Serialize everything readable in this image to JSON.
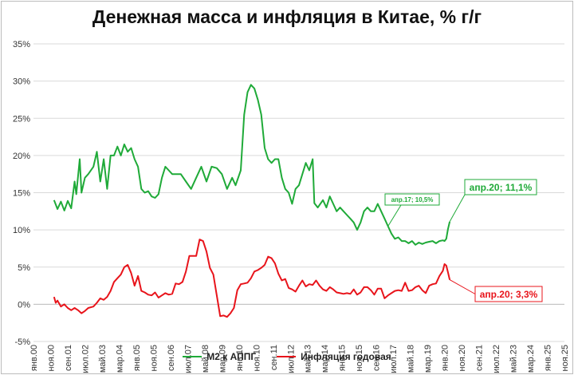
{
  "title": "Денежная масса и инфляция в Китае, % г/г",
  "legend": {
    "m2": "М2 к АППГ",
    "cpi": "Инфляция годовая"
  },
  "colors": {
    "m2": "#1faa38",
    "cpi": "#e8141b",
    "grid": "#d9d9d9"
  },
  "chart_data": {
    "type": "line",
    "title": "Денежная масса и инфляция в Китае, % г/г",
    "ylim": [
      -5,
      35
    ],
    "yticks": [
      -5,
      0,
      5,
      10,
      15,
      20,
      25,
      30,
      35
    ],
    "ytick_labels": [
      "-5%",
      "0%",
      "5%",
      "10%",
      "15%",
      "20%",
      "25%",
      "30%",
      "35%"
    ],
    "x_domain": [
      "2000-01",
      "2025-11"
    ],
    "xticks": [
      {
        "date": "2000-01",
        "label": "янв.00"
      },
      {
        "date": "2000-11",
        "label": "ноя.00"
      },
      {
        "date": "2001-09",
        "label": "сен.01"
      },
      {
        "date": "2002-07",
        "label": "июл.02"
      },
      {
        "date": "2003-05",
        "label": "май.03"
      },
      {
        "date": "2004-03",
        "label": "мар.04"
      },
      {
        "date": "2005-01",
        "label": "янв.05"
      },
      {
        "date": "2005-11",
        "label": "ноя.05"
      },
      {
        "date": "2006-09",
        "label": "сен.06"
      },
      {
        "date": "2007-07",
        "label": "июл.07"
      },
      {
        "date": "2008-05",
        "label": "май.08"
      },
      {
        "date": "2009-03",
        "label": "мар.09"
      },
      {
        "date": "2010-01",
        "label": "янв.10"
      },
      {
        "date": "2010-11",
        "label": "ноя.10"
      },
      {
        "date": "2011-09",
        "label": "сен.11"
      },
      {
        "date": "2012-07",
        "label": "июл.12"
      },
      {
        "date": "2013-05",
        "label": "май.13"
      },
      {
        "date": "2014-03",
        "label": "мар.14"
      },
      {
        "date": "2015-01",
        "label": "янв.15"
      },
      {
        "date": "2015-11",
        "label": "ноя.15"
      },
      {
        "date": "2016-09",
        "label": "сен.16"
      },
      {
        "date": "2017-07",
        "label": "июл.17"
      },
      {
        "date": "2018-05",
        "label": "май.18"
      },
      {
        "date": "2019-03",
        "label": "мар.19"
      },
      {
        "date": "2020-01",
        "label": "янв.20"
      },
      {
        "date": "2020-11",
        "label": "ноя.20"
      },
      {
        "date": "2021-09",
        "label": "сен.21"
      },
      {
        "date": "2022-07",
        "label": "июл.22"
      },
      {
        "date": "2023-05",
        "label": "май.23"
      },
      {
        "date": "2024-03",
        "label": "мар.24"
      },
      {
        "date": "2025-01",
        "label": "янв.25"
      },
      {
        "date": "2025-11",
        "label": "ноя.25"
      }
    ],
    "grid": true,
    "legend_position": "bottom",
    "series": [
      {
        "name": "М2 к АППГ",
        "color": "#1faa38",
        "points": [
          [
            "2001-01",
            14.0
          ],
          [
            "2001-03",
            12.8
          ],
          [
            "2001-05",
            13.8
          ],
          [
            "2001-07",
            12.6
          ],
          [
            "2001-09",
            13.9
          ],
          [
            "2001-11",
            12.9
          ],
          [
            "2002-01",
            16.5
          ],
          [
            "2002-02",
            14.8
          ],
          [
            "2002-04",
            19.5
          ],
          [
            "2002-05",
            15.0
          ],
          [
            "2002-07",
            17.0
          ],
          [
            "2002-09",
            17.5
          ],
          [
            "2002-12",
            18.5
          ],
          [
            "2003-02",
            20.5
          ],
          [
            "2003-04",
            16.5
          ],
          [
            "2003-06",
            19.5
          ],
          [
            "2003-08",
            15.5
          ],
          [
            "2003-10",
            20.0
          ],
          [
            "2003-12",
            20.0
          ],
          [
            "2004-02",
            21.2
          ],
          [
            "2004-04",
            20.0
          ],
          [
            "2004-06",
            21.5
          ],
          [
            "2004-08",
            20.5
          ],
          [
            "2004-10",
            21.0
          ],
          [
            "2004-12",
            19.5
          ],
          [
            "2005-02",
            18.5
          ],
          [
            "2005-04",
            15.5
          ],
          [
            "2005-06",
            15.0
          ],
          [
            "2005-08",
            15.2
          ],
          [
            "2005-10",
            14.5
          ],
          [
            "2005-12",
            14.3
          ],
          [
            "2006-02",
            14.8
          ],
          [
            "2006-04",
            17.0
          ],
          [
            "2006-06",
            18.5
          ],
          [
            "2006-08",
            18.0
          ],
          [
            "2006-10",
            17.5
          ],
          [
            "2006-12",
            17.5
          ],
          [
            "2007-03",
            17.5
          ],
          [
            "2007-06",
            16.5
          ],
          [
            "2007-09",
            15.5
          ],
          [
            "2007-12",
            17.0
          ],
          [
            "2008-03",
            18.5
          ],
          [
            "2008-06",
            16.5
          ],
          [
            "2008-09",
            18.5
          ],
          [
            "2008-12",
            18.3
          ],
          [
            "2009-03",
            17.5
          ],
          [
            "2009-06",
            15.5
          ],
          [
            "2009-09",
            17.0
          ],
          [
            "2009-11",
            16.0
          ],
          [
            "2010-02",
            18.0
          ],
          [
            "2010-04",
            25.5
          ],
          [
            "2010-06",
            28.5
          ],
          [
            "2010-08",
            29.5
          ],
          [
            "2010-10",
            29.0
          ],
          [
            "2010-12",
            27.5
          ],
          [
            "2011-02",
            25.5
          ],
          [
            "2011-04",
            21.0
          ],
          [
            "2011-06",
            19.5
          ],
          [
            "2011-08",
            19.0
          ],
          [
            "2011-10",
            19.5
          ],
          [
            "2011-12",
            19.5
          ],
          [
            "2012-02",
            17.0
          ],
          [
            "2012-04",
            15.5
          ],
          [
            "2012-06",
            15.0
          ],
          [
            "2012-08",
            13.5
          ],
          [
            "2012-10",
            15.5
          ],
          [
            "2012-12",
            16.0
          ],
          [
            "2013-02",
            17.5
          ],
          [
            "2013-04",
            19.0
          ],
          [
            "2013-06",
            18.0
          ],
          [
            "2013-08",
            19.5
          ],
          [
            "2013-09",
            13.6
          ],
          [
            "2013-11",
            13.0
          ],
          [
            "2014-02",
            14.0
          ],
          [
            "2014-04",
            13.0
          ],
          [
            "2014-06",
            14.5
          ],
          [
            "2014-08",
            13.5
          ],
          [
            "2014-10",
            12.5
          ],
          [
            "2014-12",
            13.0
          ],
          [
            "2015-02",
            12.5
          ],
          [
            "2015-04",
            12.0
          ],
          [
            "2015-06",
            11.5
          ],
          [
            "2015-08",
            11.0
          ],
          [
            "2015-10",
            10.0
          ],
          [
            "2015-12",
            11.0
          ],
          [
            "2016-02",
            12.5
          ],
          [
            "2016-04",
            13.0
          ],
          [
            "2016-06",
            12.5
          ],
          [
            "2016-08",
            12.5
          ],
          [
            "2016-10",
            13.5
          ],
          [
            "2016-12",
            12.5
          ],
          [
            "2017-02",
            11.5
          ],
          [
            "2017-04",
            10.5
          ],
          [
            "2017-06",
            9.5
          ],
          [
            "2017-08",
            8.8
          ],
          [
            "2017-10",
            9.0
          ],
          [
            "2017-12",
            8.5
          ],
          [
            "2018-02",
            8.5
          ],
          [
            "2018-04",
            8.2
          ],
          [
            "2018-06",
            8.5
          ],
          [
            "2018-08",
            8.0
          ],
          [
            "2018-10",
            8.3
          ],
          [
            "2018-12",
            8.1
          ],
          [
            "2019-02",
            8.3
          ],
          [
            "2019-04",
            8.4
          ],
          [
            "2019-06",
            8.5
          ],
          [
            "2019-08",
            8.2
          ],
          [
            "2019-10",
            8.5
          ],
          [
            "2019-12",
            8.6
          ],
          [
            "2020-01",
            8.5
          ],
          [
            "2020-02",
            8.8
          ],
          [
            "2020-03",
            10.1
          ],
          [
            "2020-04",
            11.1
          ]
        ]
      },
      {
        "name": "Инфляция годовая",
        "color": "#e8141b",
        "points": [
          [
            "2001-01",
            1.0
          ],
          [
            "2001-02",
            0.2
          ],
          [
            "2001-03",
            0.5
          ],
          [
            "2001-05",
            -0.3
          ],
          [
            "2001-07",
            0.0
          ],
          [
            "2001-09",
            -0.5
          ],
          [
            "2001-11",
            -0.8
          ],
          [
            "2002-01",
            -0.5
          ],
          [
            "2002-03",
            -0.8
          ],
          [
            "2002-05",
            -1.2
          ],
          [
            "2002-07",
            -0.9
          ],
          [
            "2002-09",
            -0.5
          ],
          [
            "2002-12",
            -0.3
          ],
          [
            "2003-02",
            0.2
          ],
          [
            "2003-04",
            0.8
          ],
          [
            "2003-06",
            0.6
          ],
          [
            "2003-08",
            1.0
          ],
          [
            "2003-10",
            1.8
          ],
          [
            "2003-12",
            3.0
          ],
          [
            "2004-02",
            3.5
          ],
          [
            "2004-04",
            4.0
          ],
          [
            "2004-06",
            5.0
          ],
          [
            "2004-08",
            5.3
          ],
          [
            "2004-10",
            4.2
          ],
          [
            "2004-12",
            2.5
          ],
          [
            "2005-02",
            3.8
          ],
          [
            "2005-04",
            1.8
          ],
          [
            "2005-06",
            1.6
          ],
          [
            "2005-08",
            1.3
          ],
          [
            "2005-10",
            1.2
          ],
          [
            "2005-12",
            1.6
          ],
          [
            "2006-02",
            0.9
          ],
          [
            "2006-04",
            1.2
          ],
          [
            "2006-06",
            1.5
          ],
          [
            "2006-08",
            1.3
          ],
          [
            "2006-10",
            1.4
          ],
          [
            "2006-12",
            2.8
          ],
          [
            "2007-02",
            2.7
          ],
          [
            "2007-04",
            3.0
          ],
          [
            "2007-06",
            4.4
          ],
          [
            "2007-08",
            6.5
          ],
          [
            "2007-10",
            6.5
          ],
          [
            "2007-12",
            6.5
          ],
          [
            "2008-02",
            8.7
          ],
          [
            "2008-04",
            8.5
          ],
          [
            "2008-06",
            7.1
          ],
          [
            "2008-08",
            4.9
          ],
          [
            "2008-10",
            4.0
          ],
          [
            "2008-12",
            1.2
          ],
          [
            "2009-02",
            -1.6
          ],
          [
            "2009-04",
            -1.5
          ],
          [
            "2009-06",
            -1.7
          ],
          [
            "2009-08",
            -1.2
          ],
          [
            "2009-10",
            -0.5
          ],
          [
            "2009-12",
            1.9
          ],
          [
            "2010-02",
            2.7
          ],
          [
            "2010-04",
            2.8
          ],
          [
            "2010-06",
            2.9
          ],
          [
            "2010-08",
            3.5
          ],
          [
            "2010-10",
            4.4
          ],
          [
            "2010-12",
            4.6
          ],
          [
            "2011-02",
            4.9
          ],
          [
            "2011-04",
            5.3
          ],
          [
            "2011-06",
            6.4
          ],
          [
            "2011-08",
            6.2
          ],
          [
            "2011-10",
            5.5
          ],
          [
            "2011-12",
            4.1
          ],
          [
            "2012-02",
            3.2
          ],
          [
            "2012-04",
            3.4
          ],
          [
            "2012-06",
            2.2
          ],
          [
            "2012-08",
            2.0
          ],
          [
            "2012-10",
            1.7
          ],
          [
            "2012-12",
            2.5
          ],
          [
            "2013-02",
            3.2
          ],
          [
            "2013-04",
            2.4
          ],
          [
            "2013-06",
            2.7
          ],
          [
            "2013-08",
            2.6
          ],
          [
            "2013-10",
            3.2
          ],
          [
            "2013-12",
            2.5
          ],
          [
            "2014-02",
            2.0
          ],
          [
            "2014-04",
            1.8
          ],
          [
            "2014-06",
            2.3
          ],
          [
            "2014-08",
            2.0
          ],
          [
            "2014-10",
            1.6
          ],
          [
            "2014-12",
            1.5
          ],
          [
            "2015-02",
            1.4
          ],
          [
            "2015-04",
            1.5
          ],
          [
            "2015-06",
            1.4
          ],
          [
            "2015-08",
            2.0
          ],
          [
            "2015-10",
            1.3
          ],
          [
            "2015-12",
            1.6
          ],
          [
            "2016-02",
            2.3
          ],
          [
            "2016-04",
            2.3
          ],
          [
            "2016-06",
            1.9
          ],
          [
            "2016-08",
            1.3
          ],
          [
            "2016-10",
            2.1
          ],
          [
            "2016-12",
            2.1
          ],
          [
            "2017-02",
            0.8
          ],
          [
            "2017-04",
            1.2
          ],
          [
            "2017-06",
            1.5
          ],
          [
            "2017-08",
            1.8
          ],
          [
            "2017-10",
            1.9
          ],
          [
            "2017-12",
            1.8
          ],
          [
            "2018-02",
            2.9
          ],
          [
            "2018-04",
            1.8
          ],
          [
            "2018-06",
            1.9
          ],
          [
            "2018-08",
            2.3
          ],
          [
            "2018-10",
            2.5
          ],
          [
            "2018-12",
            1.9
          ],
          [
            "2019-02",
            1.5
          ],
          [
            "2019-04",
            2.5
          ],
          [
            "2019-06",
            2.7
          ],
          [
            "2019-08",
            2.8
          ],
          [
            "2019-10",
            3.8
          ],
          [
            "2019-12",
            4.5
          ],
          [
            "2020-01",
            5.4
          ],
          [
            "2020-02",
            5.2
          ],
          [
            "2020-03",
            4.3
          ],
          [
            "2020-04",
            3.3
          ]
        ]
      }
    ],
    "annotations": [
      {
        "text": "апр.17; 10,5%",
        "series": "М2 к АППГ",
        "date": "2017-04",
        "value": 10.5,
        "color": "#1faa38",
        "size": "small"
      },
      {
        "text": "апр.20; 11,1%",
        "series": "М2 к АППГ",
        "date": "2020-04",
        "value": 11.1,
        "color": "#1faa38",
        "size": "large"
      },
      {
        "text": "апр.20; 3,3%",
        "series": "Инфляция годовая",
        "date": "2020-04",
        "value": 3.3,
        "color": "#e8141b",
        "size": "large"
      }
    ]
  }
}
